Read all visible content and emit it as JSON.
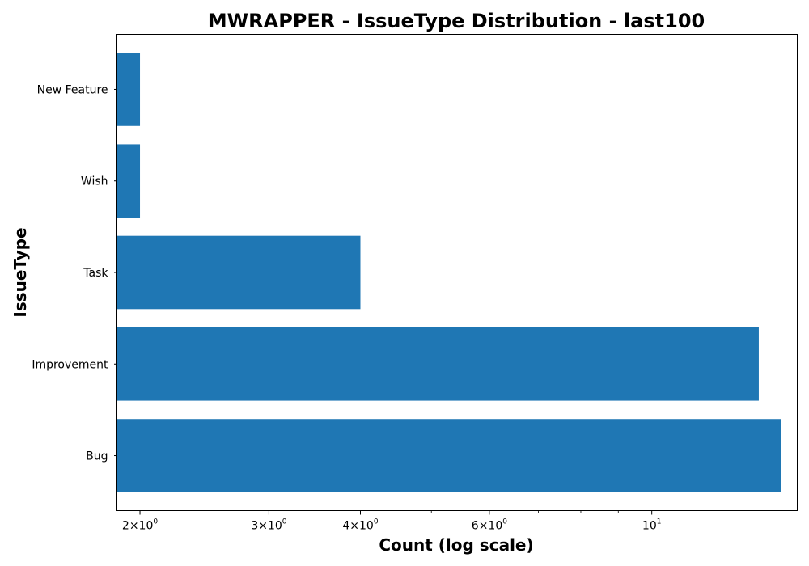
{
  "chart_data": {
    "type": "bar",
    "orientation": "horizontal",
    "title": "MWRAPPER - IssueType Distribution - last100",
    "xlabel": "Count (log scale)",
    "ylabel": "IssueType",
    "x_scale": "log",
    "xlim": [
      1.86,
      15.8
    ],
    "categories": [
      "Bug",
      "Improvement",
      "Task",
      "Wish",
      "New Feature"
    ],
    "values": [
      15,
      14,
      4,
      2,
      2
    ],
    "major_ticks": [
      {
        "value": 2,
        "base": "2",
        "exponent": "0"
      },
      {
        "value": 3,
        "base": "3",
        "exponent": "0"
      },
      {
        "value": 4,
        "base": "4",
        "exponent": "0"
      },
      {
        "value": 6,
        "base": "6",
        "exponent": "0"
      },
      {
        "value": 10,
        "base": "10",
        "exponent": "1"
      }
    ],
    "minor_ticks": [
      5,
      7,
      8,
      9
    ],
    "bar_color": "#1f77b4",
    "grid": false,
    "legend": "none"
  }
}
